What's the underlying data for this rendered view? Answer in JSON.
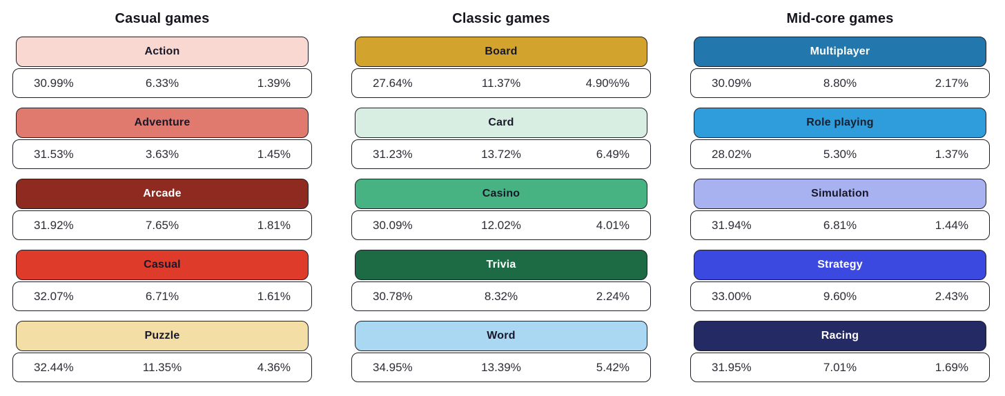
{
  "chart_data": {
    "type": "table",
    "description_note": "Three columns of game-category cards; each card header is a colored pill with the category name, each value row shows three percentages (left, center, right).",
    "groups": [
      {
        "title": "Casual games",
        "categories": [
          {
            "name": "Action",
            "header_bg": "#f9d8d1",
            "header_text": "#18182a",
            "values": [
              "30.99%",
              "6.33%",
              "1.39%"
            ]
          },
          {
            "name": "Adventure",
            "header_bg": "#e07a6e",
            "header_text": "#18182a",
            "values": [
              "31.53%",
              "3.63%",
              "1.45%"
            ]
          },
          {
            "name": "Arcade",
            "header_bg": "#8f2a20",
            "header_text": "#ffffff",
            "values": [
              "31.92%",
              "7.65%",
              "1.81%"
            ]
          },
          {
            "name": "Casual",
            "header_bg": "#de3b2b",
            "header_text": "#18182a",
            "values": [
              "32.07%",
              "6.71%",
              "1.61%"
            ]
          },
          {
            "name": "Puzzle",
            "header_bg": "#f3dfa5",
            "header_text": "#18182a",
            "values": [
              "32.44%",
              "11.35%",
              "4.36%"
            ]
          }
        ]
      },
      {
        "title": "Classic games",
        "categories": [
          {
            "name": "Board",
            "header_bg": "#d3a42d",
            "header_text": "#18182a",
            "values": [
              "27.64%",
              "11.37%",
              "4.90%%"
            ]
          },
          {
            "name": "Card",
            "header_bg": "#d8eee2",
            "header_text": "#18182a",
            "values": [
              "31.23%",
              "13.72%",
              "6.49%"
            ]
          },
          {
            "name": "Casino",
            "header_bg": "#47b383",
            "header_text": "#18182a",
            "values": [
              "30.09%",
              "12.02%",
              "4.01%"
            ]
          },
          {
            "name": "Trivia",
            "header_bg": "#1d6b45",
            "header_text": "#ffffff",
            "values": [
              "30.78%",
              "8.32%",
              "2.24%"
            ]
          },
          {
            "name": "Word",
            "header_bg": "#aad7f1",
            "header_text": "#18182a",
            "values": [
              "34.95%",
              "13.39%",
              "5.42%"
            ]
          }
        ]
      },
      {
        "title": "Mid-core games",
        "categories": [
          {
            "name": "Multiplayer",
            "header_bg": "#2277ac",
            "header_text": "#ffffff",
            "values": [
              "30.09%",
              "8.80%",
              "2.17%"
            ]
          },
          {
            "name": "Role playing",
            "header_bg": "#2f9ddb",
            "header_text": "#18202f",
            "values": [
              "28.02%",
              "5.30%",
              "1.37%"
            ]
          },
          {
            "name": "Simulation",
            "header_bg": "#a9b2f0",
            "header_text": "#18182a",
            "values": [
              "31.94%",
              "6.81%",
              "1.44%"
            ]
          },
          {
            "name": "Strategy",
            "header_bg": "#3b49e1",
            "header_text": "#ffffff",
            "values": [
              "33.00%",
              "9.60%",
              "2.43%"
            ]
          },
          {
            "name": "Racing",
            "header_bg": "#242a64",
            "header_text": "#ffffff",
            "values": [
              "31.95%",
              "7.01%",
              "1.69%"
            ]
          }
        ]
      }
    ],
    "colors": {
      "card_border": "#1d1d26",
      "values_text": "#2b2b35",
      "background": "#ffffff"
    }
  }
}
